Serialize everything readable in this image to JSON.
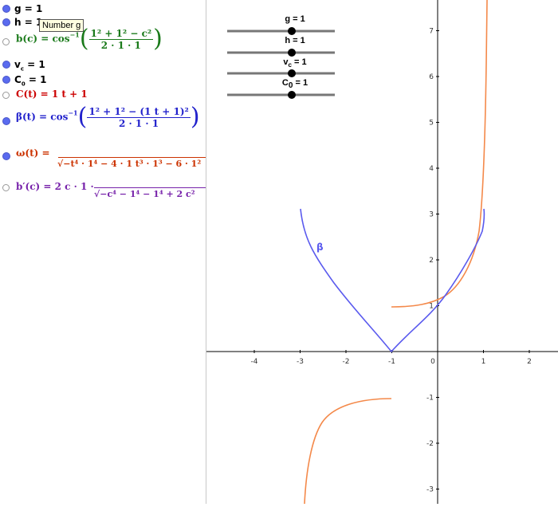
{
  "algebra": {
    "g": "g = 1",
    "h": "h = 1",
    "b_lhs": "b(c) = cos",
    "b_num": "1² + 1² − c²",
    "b_den": "2 · 1 · 1",
    "vc": "v",
    "vc_sub": "c",
    "vc_rest": " = 1",
    "C0": "C",
    "C0_sub": "0",
    "C0_rest": " = 1",
    "Ct": "C(t)  =  1 t + 1",
    "beta_lhs": "β(t)  =  cos",
    "beta_num": "1² + 1² − (1 t + 1)²",
    "beta_den": "2 · 1 · 1",
    "omega_lhs": "ω(t)  =",
    "omega_den": "√−t⁴ · 1⁴ − 4 · 1 t³ · 1³ − 6 · 1²",
    "bprime_lhs": "b′(c)  =  2 c · 1 ·",
    "bprime_den": "√−c⁴ − 1⁴ − 1⁴ + 2 c²",
    "tooltip": "Number g"
  },
  "colors": {
    "b": "#1a7a1a",
    "C": "#cc0000",
    "beta": "#2222cc",
    "omega": "#cc3300",
    "bprime": "#7722aa",
    "curve_orange": "#f4894a",
    "curve_blue": "#5a5aee",
    "dot_on": "#5a6bef"
  },
  "sliders": [
    {
      "label": "g = 1",
      "value": 1
    },
    {
      "label": "h = 1",
      "value": 1
    },
    {
      "label": "v",
      "sub": "c",
      "rest": " = 1",
      "value": 1
    },
    {
      "label": "C",
      "sub": "0",
      "rest": " = 1",
      "value": 1
    }
  ],
  "graph": {
    "x_ticks": [
      "-4",
      "-3",
      "-2",
      "-1",
      "0",
      "1",
      "2"
    ],
    "y_ticks": [
      "7",
      "6",
      "5",
      "4",
      "3",
      "2",
      "1",
      "-1",
      "-2",
      "-3"
    ],
    "curve_label": "β"
  }
}
